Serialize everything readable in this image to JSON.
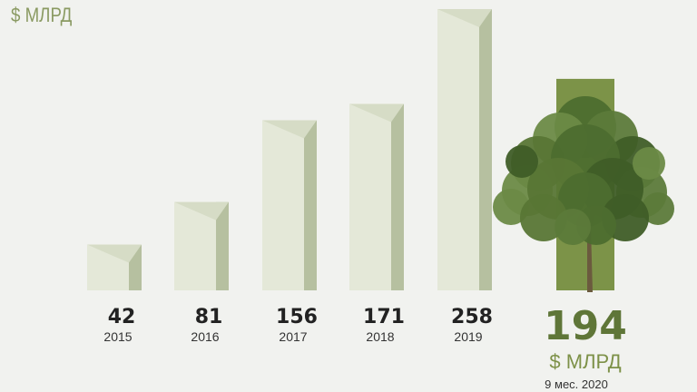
{
  "unit_label": "$ МЛРД",
  "colors": {
    "bar_face": "#e4e8d8",
    "bar_side": "#b6c0a0",
    "bar_top": "#d6dcc6",
    "highlight": "#7c9348",
    "accent_text": "#5f7638",
    "tree": "#5c7a3a"
  },
  "highlight_icon": "tree-icon",
  "chart_data": {
    "type": "bar",
    "categories": [
      "2015",
      "2016",
      "2017",
      "2018",
      "2019",
      "9 мес. 2020"
    ],
    "values": [
      42,
      81,
      156,
      171,
      258,
      194
    ],
    "value_labels": [
      "42",
      "81",
      "156",
      "171",
      "258",
      "194"
    ],
    "ylabel": "$ МЛРД",
    "highlight_category": "9 мес. 2020",
    "highlight_unit": "$ МЛРД",
    "ylim": [
      0,
      258
    ]
  }
}
